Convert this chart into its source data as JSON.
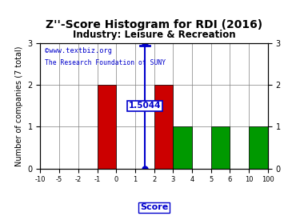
{
  "title": "Z''-Score Histogram for RDI (2016)",
  "subtitle": "Industry: Leisure & Recreation",
  "watermark_line1": "©www.textbiz.org",
  "watermark_line2": "The Research Foundation of SUNY",
  "xlabel": "Score",
  "ylabel": "Number of companies (7 total)",
  "bin_edges": [
    -10,
    -5,
    -2,
    -1,
    0,
    1,
    2,
    3,
    4,
    5,
    6,
    10,
    100
  ],
  "counts": [
    0,
    0,
    0,
    2,
    0,
    0,
    2,
    1,
    0,
    1,
    0,
    1
  ],
  "bar_colors": [
    "#cc0000",
    "#cc0000",
    "#cc0000",
    "#cc0000",
    "#cc0000",
    "#cc0000",
    "#cc0000",
    "#009900",
    "#009900",
    "#009900",
    "#009900",
    "#009900"
  ],
  "score_value": 1.5044,
  "score_label": "1.5044",
  "score_line_color": "#0000cc",
  "ylim": [
    0,
    3
  ],
  "yticks": [
    0,
    1,
    2,
    3
  ],
  "bg_color": "#ffffff",
  "watermark_color": "#0000cc",
  "title_fontsize": 10,
  "subtitle_fontsize": 8.5,
  "ylabel_fontsize": 7
}
